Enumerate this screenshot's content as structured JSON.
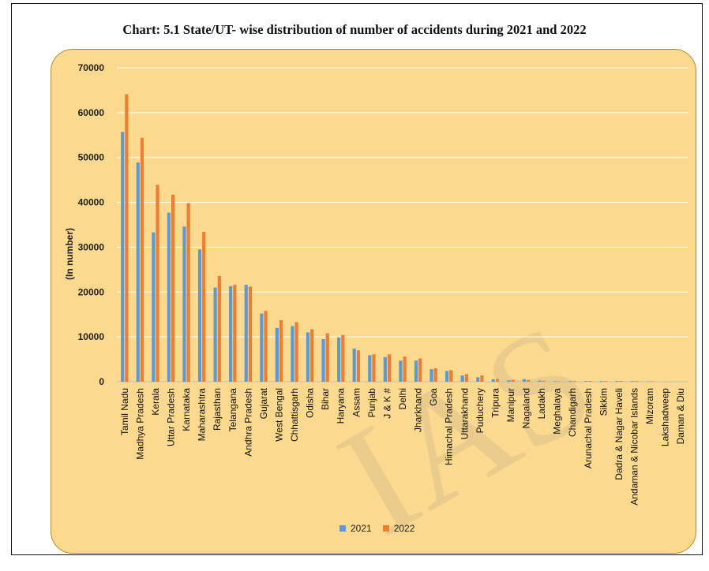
{
  "chart_data": {
    "type": "bar",
    "title": "Chart: 5.1 State/UT- wise distribution of number of accidents during 2021 and 2022",
    "ylabel": "(In number)",
    "xlabel": "",
    "ylim": [
      0,
      70000
    ],
    "yticks": [
      0,
      10000,
      20000,
      30000,
      40000,
      50000,
      60000,
      70000
    ],
    "grid": true,
    "legend_position": "bottom",
    "categories": [
      "Tamil Nadu",
      "Madhya Pradesh",
      "Kerala",
      "Uttar Pradesh",
      "Karnataka",
      "Maharashtra",
      "Rajasthan",
      "Telangana",
      "Andhra Pradesh",
      "Gujarat",
      "West Bengal",
      "Chhattisgarh",
      "Odisha",
      "Bihar",
      "Haryana",
      "Assam",
      "Punjab",
      "J & K  #",
      "Delhi",
      "Jharkhand",
      "Goa",
      "Himachal Pradesh",
      "Uttarakhand",
      "Puduchery",
      "Tripura",
      "Manipur",
      "Nagaland",
      "Ladakh",
      "Meghalaya",
      "Chandigarh",
      "Arunachal Pradesh",
      "Sikkim",
      "Dadra & Nagar Haveli",
      "Andaman & Nicobar Islands",
      "Mizoram",
      "Lakshadweep",
      "Daman & Diu"
    ],
    "series": [
      {
        "name": "2021",
        "color": "#5b9bd5",
        "values": [
          55700,
          48900,
          33300,
          37700,
          34600,
          29500,
          21000,
          21300,
          21600,
          15200,
          12000,
          12400,
          11000,
          9500,
          9900,
          7400,
          5900,
          5500,
          4700,
          4700,
          2800,
          2400,
          1400,
          1000,
          550,
          300,
          600,
          250,
          100,
          150,
          150,
          150,
          150,
          150,
          80,
          10,
          0
        ]
      },
      {
        "name": "2022",
        "color": "#ed7d31",
        "values": [
          64100,
          54400,
          43900,
          41700,
          39800,
          33400,
          23600,
          21600,
          21200,
          15800,
          13700,
          13300,
          11700,
          10800,
          10400,
          7000,
          6100,
          6100,
          5600,
          5200,
          3000,
          2600,
          1700,
          1400,
          600,
          400,
          400,
          200,
          100,
          150,
          150,
          150,
          150,
          150,
          100,
          10,
          0
        ]
      }
    ]
  }
}
